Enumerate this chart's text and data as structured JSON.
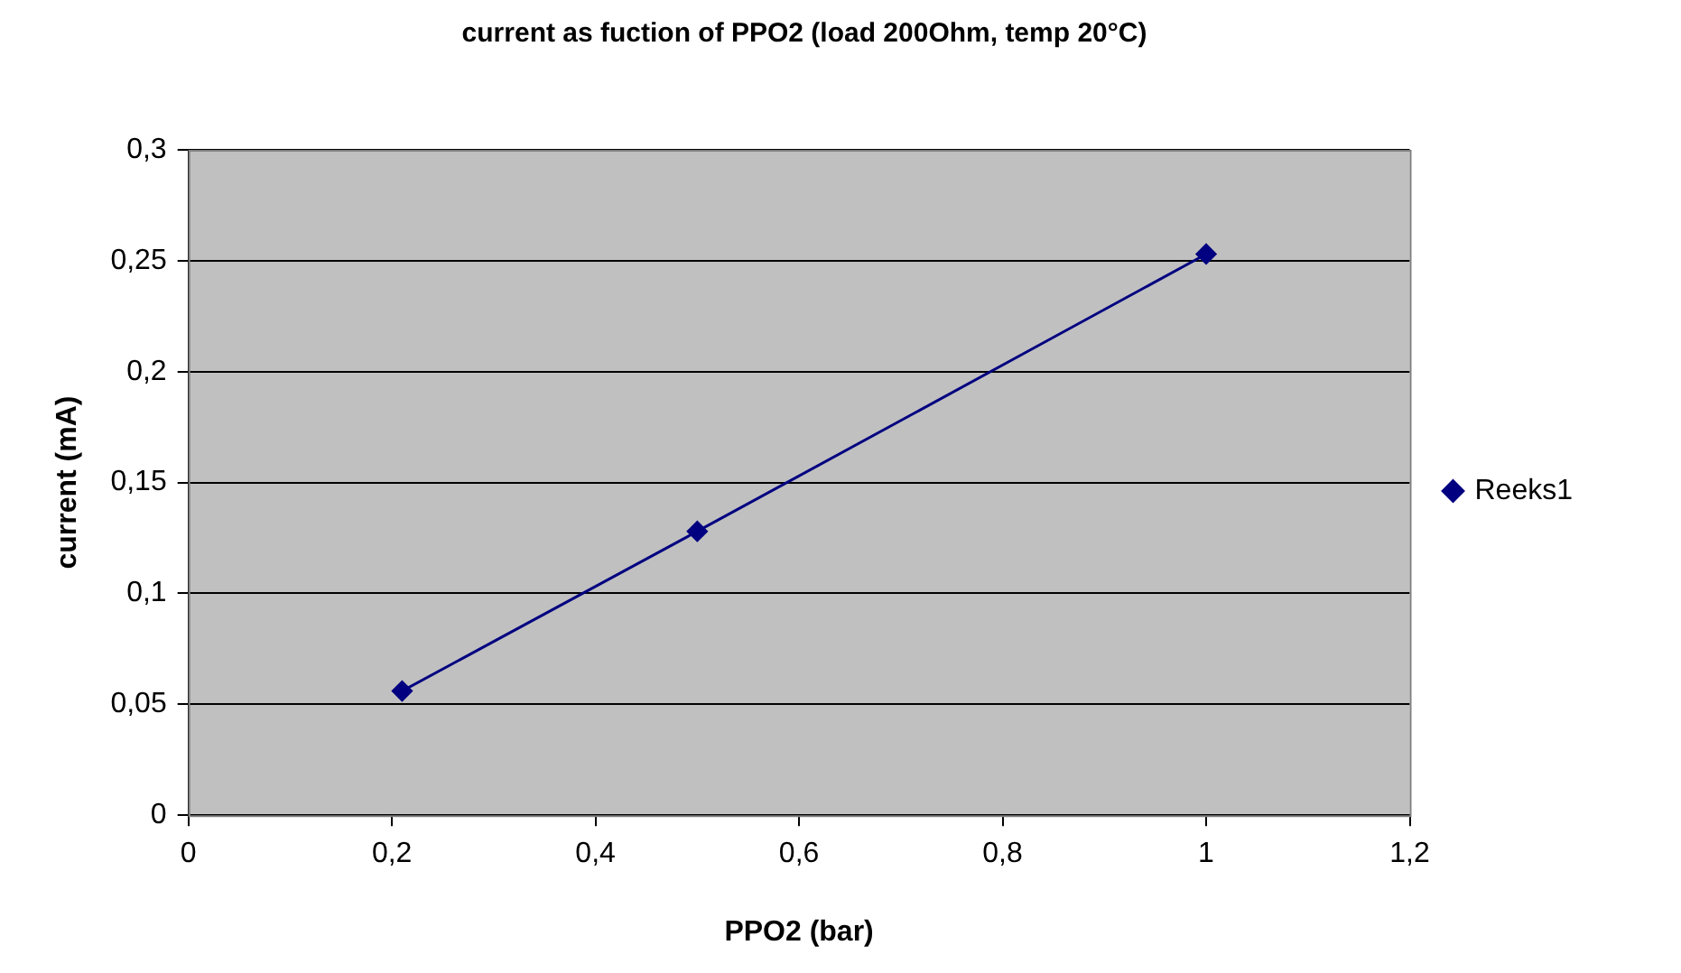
{
  "chart_data": {
    "type": "line",
    "title": "current as fuction of PPO2 (load 200Ohm, temp 20°C)",
    "xlabel": "PPO2 (bar)",
    "ylabel": "current (mA)",
    "x": [
      0.21,
      0.5,
      1.0
    ],
    "series": [
      {
        "name": "Reeks1",
        "color": "#000080",
        "values": [
          0.056,
          0.128,
          0.253
        ]
      }
    ],
    "xlim": [
      0,
      1.2
    ],
    "xticks": [
      0,
      {
        "value": 0.2,
        "label": "0,2"
      },
      {
        "value": 0.4,
        "label": "0,4"
      },
      {
        "value": 0.6,
        "label": "0,6"
      },
      {
        "value": 0.8,
        "label": "0,8"
      },
      1,
      {
        "value": 1.2,
        "label": "1,2"
      }
    ],
    "ylim": [
      0,
      0.3
    ],
    "yticks": [
      0,
      {
        "value": 0.05,
        "label": "0,05"
      },
      {
        "value": 0.1,
        "label": "0,1"
      },
      {
        "value": 0.15,
        "label": "0,15"
      },
      {
        "value": 0.2,
        "label": "0,2"
      },
      {
        "value": 0.25,
        "label": "0,25"
      },
      {
        "value": 0.3,
        "label": "0,3"
      }
    ],
    "grid": "y",
    "legend": "right",
    "marker": "diamond",
    "line_style": "solid"
  }
}
